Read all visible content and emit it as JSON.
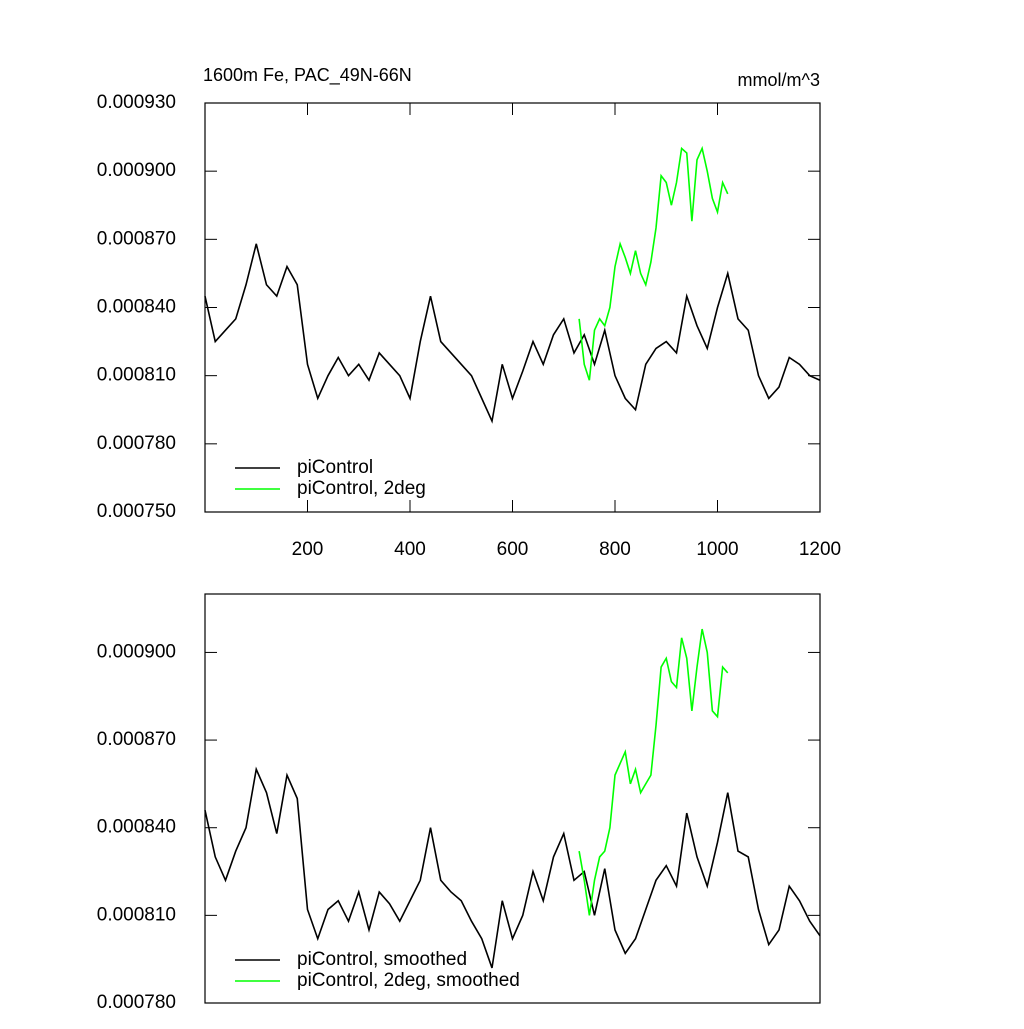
{
  "chart_data": [
    {
      "type": "line",
      "title": "1600m Fe, PAC_49N-66N",
      "units": "mmol/m^3",
      "xlim": [
        0,
        1200
      ],
      "xticks": [
        200,
        400,
        600,
        800,
        1000,
        1200
      ],
      "ylim": [
        0.00075,
        0.00093
      ],
      "yticks": [
        {
          "value": 0.00075,
          "label": "0.000750"
        },
        {
          "value": 0.00078,
          "label": "0.000780"
        },
        {
          "value": 0.00081,
          "label": "0.000810"
        },
        {
          "value": 0.00084,
          "label": "0.000840"
        },
        {
          "value": 0.00087,
          "label": "0.000870"
        },
        {
          "value": 0.0009,
          "label": "0.000900"
        },
        {
          "value": 0.00093,
          "label": "0.000930"
        }
      ],
      "series": [
        {
          "name": "piControl",
          "color": "#000000",
          "x": [
            0,
            20,
            40,
            60,
            80,
            100,
            120,
            140,
            160,
            180,
            200,
            220,
            240,
            260,
            280,
            300,
            320,
            340,
            360,
            380,
            400,
            420,
            440,
            460,
            480,
            500,
            520,
            540,
            560,
            580,
            600,
            620,
            640,
            660,
            680,
            700,
            720,
            740,
            760,
            780,
            800,
            820,
            840,
            860,
            880,
            900,
            920,
            940,
            960,
            980,
            1000,
            1020,
            1040,
            1060,
            1080,
            1100,
            1120,
            1140,
            1160,
            1180,
            1200
          ],
          "values": [
            0.000845,
            0.000825,
            0.00083,
            0.000835,
            0.00085,
            0.000868,
            0.00085,
            0.000845,
            0.000858,
            0.00085,
            0.000815,
            0.0008,
            0.00081,
            0.000818,
            0.00081,
            0.000815,
            0.000808,
            0.00082,
            0.000815,
            0.00081,
            0.0008,
            0.000825,
            0.000845,
            0.000825,
            0.00082,
            0.000815,
            0.00081,
            0.0008,
            0.00079,
            0.000815,
            0.0008,
            0.000812,
            0.000825,
            0.000815,
            0.000828,
            0.000835,
            0.00082,
            0.000828,
            0.000815,
            0.00083,
            0.00081,
            0.0008,
            0.000795,
            0.000815,
            0.000822,
            0.000825,
            0.00082,
            0.000845,
            0.000832,
            0.000822,
            0.00084,
            0.000855,
            0.000835,
            0.00083,
            0.00081,
            0.0008,
            0.000805,
            0.000818,
            0.000815,
            0.00081,
            0.000808
          ]
        },
        {
          "name": "piControl, 2deg",
          "color": "#00ff00",
          "x": [
            730,
            740,
            750,
            760,
            770,
            780,
            790,
            800,
            810,
            820,
            830,
            840,
            850,
            860,
            870,
            880,
            890,
            900,
            910,
            920,
            930,
            940,
            950,
            960,
            970,
            980,
            990,
            1000,
            1010,
            1020
          ],
          "values": [
            0.000835,
            0.000815,
            0.000808,
            0.00083,
            0.000835,
            0.000832,
            0.00084,
            0.000858,
            0.000868,
            0.000862,
            0.000855,
            0.000865,
            0.000855,
            0.00085,
            0.00086,
            0.000875,
            0.000898,
            0.000895,
            0.000885,
            0.000895,
            0.00091,
            0.000908,
            0.000878,
            0.000905,
            0.00091,
            0.0009,
            0.000888,
            0.000882,
            0.000895,
            0.00089
          ]
        }
      ]
    },
    {
      "type": "line",
      "xlim": [
        0,
        1200
      ],
      "ylim": [
        0.00078,
        0.00092
      ],
      "yticks": [
        {
          "value": 0.00078,
          "label": "0.000780"
        },
        {
          "value": 0.00081,
          "label": "0.000810"
        },
        {
          "value": 0.00084,
          "label": "0.000840"
        },
        {
          "value": 0.00087,
          "label": "0.000870"
        },
        {
          "value": 0.0009,
          "label": "0.000900"
        }
      ],
      "series": [
        {
          "name": "piControl, smoothed",
          "color": "#000000",
          "x": [
            0,
            20,
            40,
            60,
            80,
            100,
            120,
            140,
            160,
            180,
            200,
            220,
            240,
            260,
            280,
            300,
            320,
            340,
            360,
            380,
            400,
            420,
            440,
            460,
            480,
            500,
            520,
            540,
            560,
            580,
            600,
            620,
            640,
            660,
            680,
            700,
            720,
            740,
            760,
            780,
            800,
            820,
            840,
            860,
            880,
            900,
            920,
            940,
            960,
            980,
            1000,
            1020,
            1040,
            1060,
            1080,
            1100,
            1120,
            1140,
            1160,
            1180,
            1200
          ],
          "values": [
            0.000846,
            0.00083,
            0.000822,
            0.000832,
            0.00084,
            0.00086,
            0.000852,
            0.000838,
            0.000858,
            0.00085,
            0.000812,
            0.000802,
            0.000812,
            0.000815,
            0.000808,
            0.000818,
            0.000805,
            0.000818,
            0.000814,
            0.000808,
            0.000815,
            0.000822,
            0.00084,
            0.000822,
            0.000818,
            0.000815,
            0.000808,
            0.000802,
            0.000792,
            0.000815,
            0.000802,
            0.00081,
            0.000825,
            0.000815,
            0.00083,
            0.000838,
            0.000822,
            0.000825,
            0.00081,
            0.000826,
            0.000805,
            0.000797,
            0.000802,
            0.000812,
            0.000822,
            0.000827,
            0.00082,
            0.000845,
            0.00083,
            0.00082,
            0.000835,
            0.000852,
            0.000832,
            0.00083,
            0.000812,
            0.0008,
            0.000805,
            0.00082,
            0.000815,
            0.000808,
            0.000803
          ]
        },
        {
          "name": "piControl, 2deg, smoothed",
          "color": "#00ff00",
          "x": [
            730,
            740,
            750,
            760,
            770,
            780,
            790,
            800,
            810,
            820,
            830,
            840,
            850,
            860,
            870,
            880,
            890,
            900,
            910,
            920,
            930,
            940,
            950,
            960,
            970,
            980,
            990,
            1000,
            1010,
            1020
          ],
          "values": [
            0.000832,
            0.000822,
            0.00081,
            0.000822,
            0.00083,
            0.000832,
            0.00084,
            0.000858,
            0.000862,
            0.000866,
            0.000855,
            0.00086,
            0.000852,
            0.000855,
            0.000858,
            0.000875,
            0.000895,
            0.000898,
            0.00089,
            0.000888,
            0.000905,
            0.000898,
            0.00088,
            0.000895,
            0.000908,
            0.0009,
            0.00088,
            0.000878,
            0.000895,
            0.000893
          ]
        }
      ]
    }
  ]
}
